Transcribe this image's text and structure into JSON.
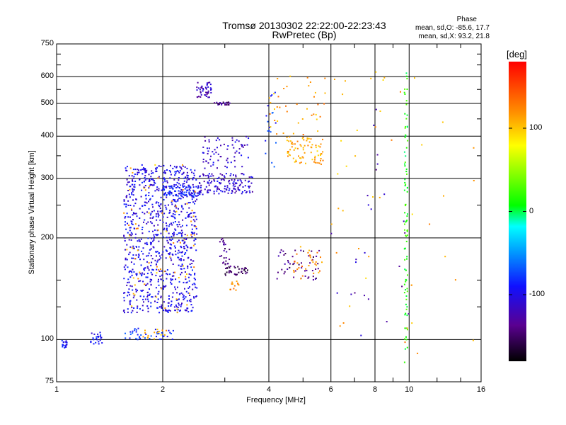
{
  "chart_data": {
    "type": "scatter",
    "title": "Tromsø 20130302 22:22:00-22:23:43",
    "subtitle": "RwPretec (Bp)",
    "phase_box": {
      "heading": "Phase",
      "line_o": "mean, sd,O: -85.6, 17.7",
      "line_x": "mean, sd,X:  93.2, 21.8"
    },
    "xlabel": "Frequency [MHz]",
    "ylabel": "Stationary phase Virtual Height [km]",
    "x_scale": "log",
    "y_scale": "log",
    "xlim": [
      1,
      16
    ],
    "ylim": [
      75,
      750
    ],
    "x_ticks": [
      1,
      2,
      4,
      6,
      8,
      10,
      16
    ],
    "x_tick_labels": [
      "1",
      "2",
      "4",
      "6",
      "8",
      "10",
      "16"
    ],
    "y_ticks": [
      75,
      100,
      200,
      300,
      400,
      500,
      600,
      750
    ],
    "y_tick_labels": [
      "75",
      "100",
      "200",
      "300",
      "400",
      "500",
      "600",
      "750"
    ],
    "grid": true,
    "colorbar": {
      "label": "[deg]",
      "range": [
        -180,
        180
      ],
      "ticks": [
        100,
        0,
        -100
      ],
      "tick_labels": [
        "100",
        "0",
        "-100"
      ]
    },
    "series": [
      {
        "phase": -90,
        "x_range": [
          1.03,
          1.07
        ],
        "y_range": [
          94,
          100
        ],
        "count": 20
      },
      {
        "phase": -95,
        "x_range": [
          1.25,
          1.35
        ],
        "y_range": [
          96,
          105
        ],
        "count": 25
      },
      {
        "phase": -85,
        "x_range": [
          1.5,
          2.15
        ],
        "y_range": [
          100,
          108
        ],
        "count": 40
      },
      {
        "phase": 110,
        "x_range": [
          1.75,
          2.05
        ],
        "y_range": [
          100,
          108
        ],
        "count": 15
      },
      {
        "phase": -100,
        "x_range": [
          1.55,
          2.5
        ],
        "y_range": [
          120,
          330
        ],
        "count": 900
      },
      {
        "phase": -90,
        "x_range": [
          2.0,
          2.6
        ],
        "y_range": [
          265,
          285
        ],
        "count": 90
      },
      {
        "phase": 110,
        "x_range": [
          1.55,
          2.5
        ],
        "y_range": [
          120,
          330
        ],
        "count": 70
      },
      {
        "phase": -110,
        "x_range": [
          2.5,
          3.6
        ],
        "y_range": [
          270,
          310
        ],
        "count": 140
      },
      {
        "phase": -120,
        "x_range": [
          2.5,
          2.75
        ],
        "y_range": [
          520,
          580
        ],
        "count": 45
      },
      {
        "phase": -140,
        "x_range": [
          2.8,
          3.1
        ],
        "y_range": [
          495,
          505
        ],
        "count": 25
      },
      {
        "phase": -110,
        "x_range": [
          2.6,
          3.5
        ],
        "y_range": [
          320,
          400
        ],
        "count": 70
      },
      {
        "phase": -150,
        "x_range": [
          3.0,
          3.5
        ],
        "y_range": [
          155,
          165
        ],
        "count": 40
      },
      {
        "phase": -140,
        "x_range": [
          2.9,
          3.1
        ],
        "y_range": [
          165,
          200
        ],
        "count": 25
      },
      {
        "phase": 120,
        "x_range": [
          3.1,
          3.3
        ],
        "y_range": [
          140,
          150
        ],
        "count": 12
      },
      {
        "phase": 110,
        "x_range": [
          4.5,
          5.7
        ],
        "y_range": [
          330,
          400
        ],
        "count": 80
      },
      {
        "phase": -140,
        "x_range": [
          4.2,
          5.6
        ],
        "y_range": [
          150,
          185
        ],
        "count": 50
      },
      {
        "phase": 120,
        "x_range": [
          4.7,
          5.8
        ],
        "y_range": [
          150,
          190
        ],
        "count": 30
      },
      {
        "phase": 115,
        "x_range": [
          4.0,
          5.8
        ],
        "y_range": [
          400,
          620
        ],
        "count": 40
      },
      {
        "phase": -80,
        "x_range": [
          3.9,
          4.2
        ],
        "y_range": [
          320,
          560
        ],
        "count": 18
      },
      {
        "phase": 15,
        "x_range": [
          9.7,
          9.9
        ],
        "y_range": [
          85,
          620
        ],
        "count": 90
      },
      {
        "phase": 110,
        "x_range": [
          6.0,
          15.5
        ],
        "y_range": [
          90,
          640
        ],
        "count": 45
      },
      {
        "phase": -120,
        "x_range": [
          6.0,
          10.0
        ],
        "y_range": [
          100,
          520
        ],
        "count": 25
      }
    ]
  }
}
